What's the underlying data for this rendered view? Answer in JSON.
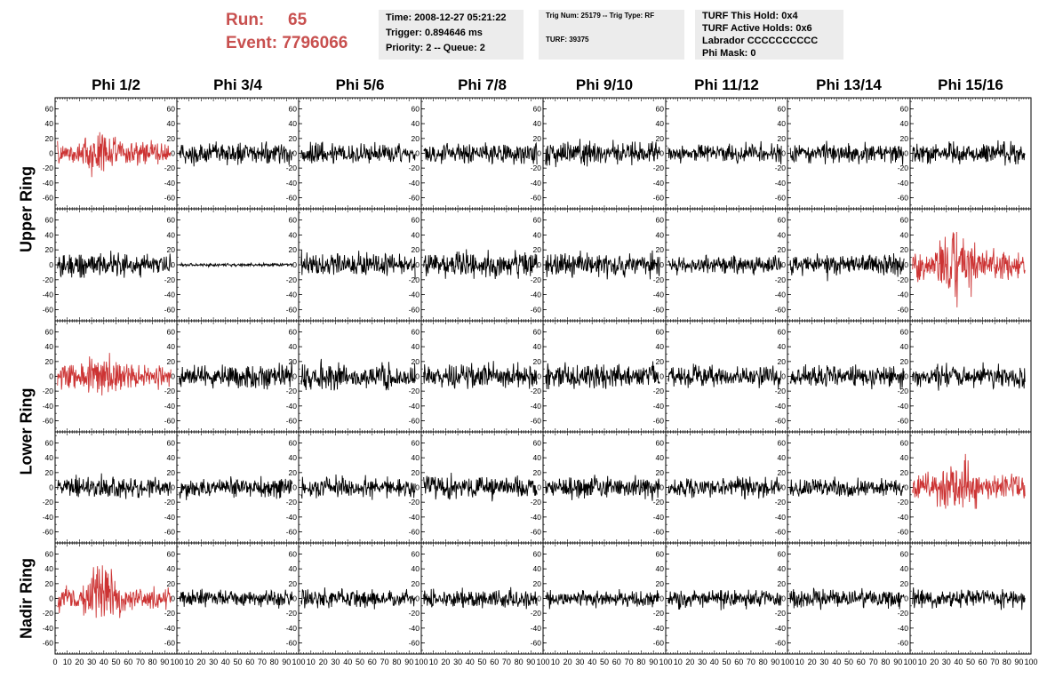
{
  "header": {
    "run_label": "Run:",
    "run_value": "65",
    "event_label": "Event:",
    "event_value": "7796066"
  },
  "info_box_1": {
    "line1": "Time: 2008-12-27 05:21:22",
    "line2": "Trigger: 0.894646 ms",
    "line3": "Priority: 2 -- Queue: 2"
  },
  "info_box_2": {
    "line1": "Trig Num: 25179 -- Trig Type: RF",
    "line2": "TURF: 39375"
  },
  "info_box_3": {
    "line1": "TURF This Hold: 0x4",
    "line2": "TURF Active Holds: 0x6",
    "line3": "Labrador CCCCCCCCCC",
    "line4": "Phi Mask: 0"
  },
  "columns": [
    "Phi 1/2",
    "Phi 3/4",
    "Phi 5/6",
    "Phi 7/8",
    "Phi 9/10",
    "Phi 11/12",
    "Phi 13/14",
    "Phi 15/16"
  ],
  "ring_labels": [
    "Upper Ring",
    "Lower Ring",
    "Nadir Ring"
  ],
  "colors": {
    "highlight": "#cc3333",
    "normal": "#000000",
    "header_red": "#c8504f",
    "box_bg": "#ececec"
  },
  "chart_data": {
    "type": "line",
    "grid": {
      "rows": 5,
      "cols": 8
    },
    "row_ring": [
      "Upper Ring",
      "Upper Ring",
      "Lower Ring",
      "Lower Ring",
      "Nadir Ring"
    ],
    "xlim": [
      0,
      100
    ],
    "ylim": [
      -75,
      75
    ],
    "x_tick_labels": [
      "0",
      "10",
      "20",
      "30",
      "40",
      "50",
      "60",
      "70",
      "80",
      "90",
      "100"
    ],
    "y_tick_labels": [
      "60",
      "40",
      "20",
      "0",
      "-20",
      "-40",
      "-60"
    ],
    "n_samples": 256,
    "amplitude": [
      [
        14,
        13,
        13,
        13,
        14,
        11,
        12,
        12
      ],
      [
        14,
        2,
        14,
        15,
        14,
        11,
        12,
        18
      ],
      [
        15,
        14,
        15,
        14,
        15,
        12,
        14,
        13
      ],
      [
        13,
        12,
        13,
        14,
        13,
        12,
        12,
        15
      ],
      [
        14,
        10,
        11,
        11,
        10,
        11,
        11,
        11
      ]
    ],
    "burst": [
      [
        2.0,
        1,
        1,
        1,
        1.2,
        1,
        1,
        1
      ],
      [
        1,
        1,
        1,
        1,
        1,
        1,
        1.4,
        2.2
      ],
      [
        2.2,
        1,
        1,
        1,
        1,
        1,
        1,
        1
      ],
      [
        1,
        1,
        1,
        1,
        1,
        1,
        1,
        2.3
      ],
      [
        2.8,
        1,
        1,
        1,
        1,
        1,
        1,
        1
      ]
    ],
    "highlighted": [
      [
        0,
        0
      ],
      [
        1,
        7
      ],
      [
        2,
        0
      ],
      [
        3,
        7
      ],
      [
        4,
        0
      ]
    ]
  }
}
